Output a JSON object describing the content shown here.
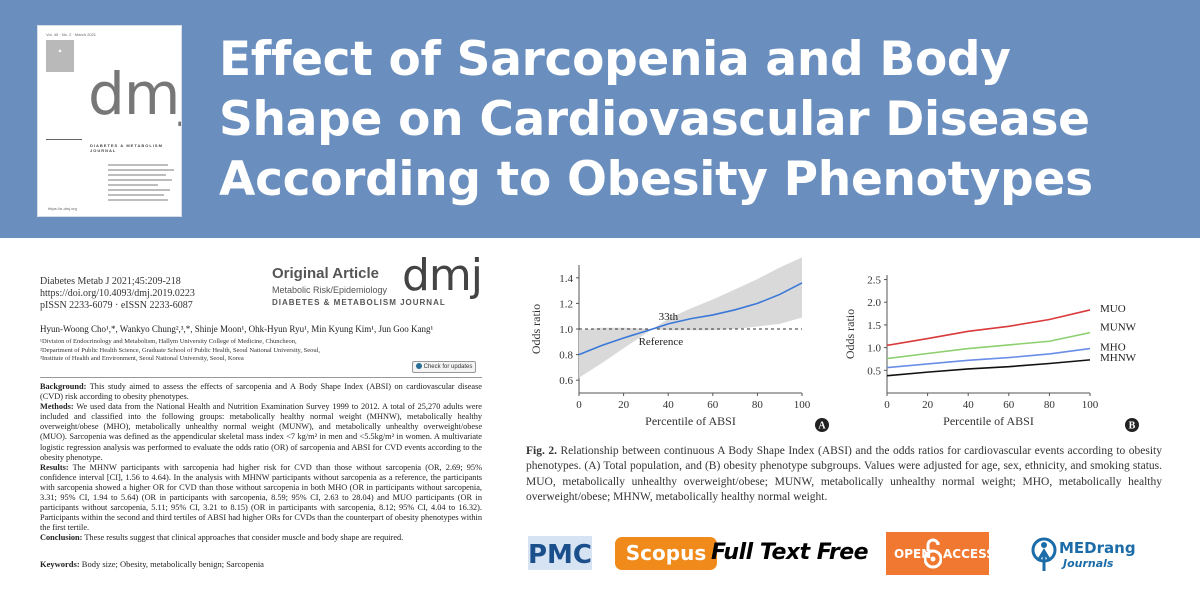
{
  "header": {
    "title": "Effect of Sarcopenia and Body Shape on Cardiovascular Disease According to Obesity Phenotypes",
    "colors": {
      "band": "#6a8fbe",
      "title": "#ffffff"
    },
    "cover": {
      "top_line": "Vol. 45 · No. 2 · March 2021",
      "logo": "dmj",
      "journal": "DIABETES & METABOLISM JOURNAL",
      "url": "https://e-dmj.org"
    }
  },
  "article": {
    "citation": [
      "Diabetes Metab J 2021;45:209-218",
      "https://doi.org/10.4093/dmj.2019.0223",
      "pISSN 2233-6079 · eISSN 2233-6087"
    ],
    "type": "Original Article",
    "section": "Metabolic Risk/Epidemiology",
    "logo": "dmj",
    "journal": "DIABETES & METABOLISM JOURNAL",
    "authors": "Hyun-Woong Cho¹,*, Wankyo Chung²,³,*, Shinje Moon¹, Ohk-Hyun Ryu¹, Min Kyung Kim¹, Jun Goo Kang¹",
    "affiliations": [
      "¹Division of Endocrinology and Metabolism, Hallym University College of Medicine, Chuncheon,",
      "²Department of Public Health Science, Graduate School of Public Health, Seoul National University, Seoul,",
      "³Institute of Health and Environment, Seoul National University, Seoul, Korea"
    ],
    "check_updates": "Check for updates",
    "abstract": {
      "background_label": "Background:",
      "background": "This study aimed to assess the effects of sarcopenia and A Body Shape Index (ABSI) on cardiovascular disease (CVD) risk according to obesity phenotypes.",
      "methods_label": "Methods:",
      "methods": "We used data from the National Health and Nutrition Examination Survey 1999 to 2012. A total of 25,270 adults were included and classified into the following groups: metabolically healthy normal weight (MHNW), metabolically healthy overweight/obese (MHO), metabolically unhealthy normal weight (MUNW), and metabolically unhealthy overweight/obese (MUO). Sarcopenia was defined as the appendicular skeletal mass index <7 kg/m² in men and <5.5kg/m² in women. A multivariate logistic regression analysis was performed to evaluate the odds ratio (OR) of sarcopenia and ABSI for CVD events according to the obesity phenotype.",
      "results_label": "Results:",
      "results": "The MHNW participants with sarcopenia had higher risk for CVD than those without sarcopenia (OR, 2.69; 95% confidence interval [CI], 1.56 to 4.64). In the analysis with MHNW participants without sarcopenia as a reference, the participants with sarcopenia showed a higher OR for CVD than those without sarcopenia in both MHO (OR in participants without sarcopenia, 3.31; 95% CI, 1.94 to 5.64) (OR in participants with sarcopenia, 8.59; 95% CI, 2.63 to 28.04) and MUO participants (OR in participants without sarcopenia, 5.11; 95% CI, 3.21 to 8.15) (OR in participants with sarcopenia, 8.12; 95% CI, 4.04 to 16.32). Participants within the second and third tertiles of ABSI had higher ORs for CVDs than the counterpart of obesity phenotypes within the first tertile.",
      "conclusion_label": "Conclusion:",
      "conclusion": "These results suggest that clinical approaches that consider muscle and body shape are required."
    },
    "keywords_label": "Keywords:",
    "keywords": "Body size; Obesity, metabolically benign; Sarcopenia"
  },
  "figure": {
    "caption_label": "Fig. 2.",
    "caption": "Relationship between continuous A Body Shape Index (ABSI) and the odds ratios for cardiovascular events according to obesity phenotypes. (A) Total population, and (B) obesity phenotype subgroups. Values were adjusted for age, sex, ethnicity, and smoking status. MUO, metabolically unhealthy overweight/obese; MUNW, metabolically unhealthy normal weight; MHO, metabolically healthy overweight/obese; MHNW, metabolically healthy normal weight."
  },
  "chart_data": [
    {
      "type": "line",
      "panel": "A",
      "xlabel": "Percentile of ABSI",
      "ylabel": "Odds ratio",
      "xlim": [
        0,
        100
      ],
      "ylim": [
        0.5,
        1.5
      ],
      "xticks": [
        0,
        20,
        40,
        60,
        80,
        100
      ],
      "yticks": [
        0.6,
        0.8,
        1.0,
        1.2,
        1.4
      ],
      "reference_line": 1.0,
      "annotations": [
        "33th",
        "Reference"
      ],
      "series": [
        {
          "x": [
            0,
            10,
            20,
            33,
            40,
            50,
            60,
            70,
            80,
            90,
            100
          ],
          "values": [
            0.8,
            0.87,
            0.93,
            1.0,
            1.04,
            1.08,
            1.11,
            1.15,
            1.2,
            1.27,
            1.36
          ],
          "color": "#3a78d8"
        }
      ],
      "ci_lower": [
        0.62,
        0.73,
        0.85,
        1.0,
        0.99,
        0.99,
        0.99,
        1.0,
        1.02,
        1.04,
        1.09
      ],
      "ci_upper": [
        0.99,
        1.01,
        1.01,
        1.0,
        1.08,
        1.16,
        1.23,
        1.31,
        1.39,
        1.48,
        1.56
      ],
      "ci_color": "#d9d9d9"
    },
    {
      "type": "line",
      "panel": "B",
      "xlabel": "Percentile of ABSI",
      "ylabel": "Odds ratio",
      "xlim": [
        0,
        100
      ],
      "ylim": [
        0,
        2.6
      ],
      "xticks": [
        0,
        20,
        40,
        60,
        80,
        100
      ],
      "yticks": [
        0.5,
        1.0,
        1.5,
        2.0,
        2.5
      ],
      "categories": [
        0,
        20,
        40,
        60,
        80,
        100
      ],
      "series": [
        {
          "name": "MUO",
          "values": [
            1.05,
            1.2,
            1.36,
            1.47,
            1.62,
            1.83
          ],
          "color": "#d93a3a"
        },
        {
          "name": "MUNW",
          "values": [
            0.76,
            0.87,
            0.98,
            1.06,
            1.14,
            1.33
          ],
          "color": "#8ccf6e"
        },
        {
          "name": "MHO",
          "values": [
            0.56,
            0.64,
            0.72,
            0.78,
            0.86,
            0.98
          ],
          "color": "#6a8ee8"
        },
        {
          "name": "MHNW",
          "values": [
            0.38,
            0.46,
            0.53,
            0.58,
            0.65,
            0.73
          ],
          "color": "#111111"
        }
      ]
    }
  ],
  "logos": {
    "pmc": "PMC",
    "scopus": "Scopus",
    "fulltext": "Full Text Free",
    "oa_left": "OPEN",
    "oa_right": "ACCESS",
    "medrang_top": "MEDrang",
    "medrang_bottom": "Journals",
    "colors": {
      "pmc": "#1b4f8c",
      "scopus": "#ef8a1b",
      "open_access": "#f07830",
      "medrang": "#1b6ca8"
    }
  }
}
